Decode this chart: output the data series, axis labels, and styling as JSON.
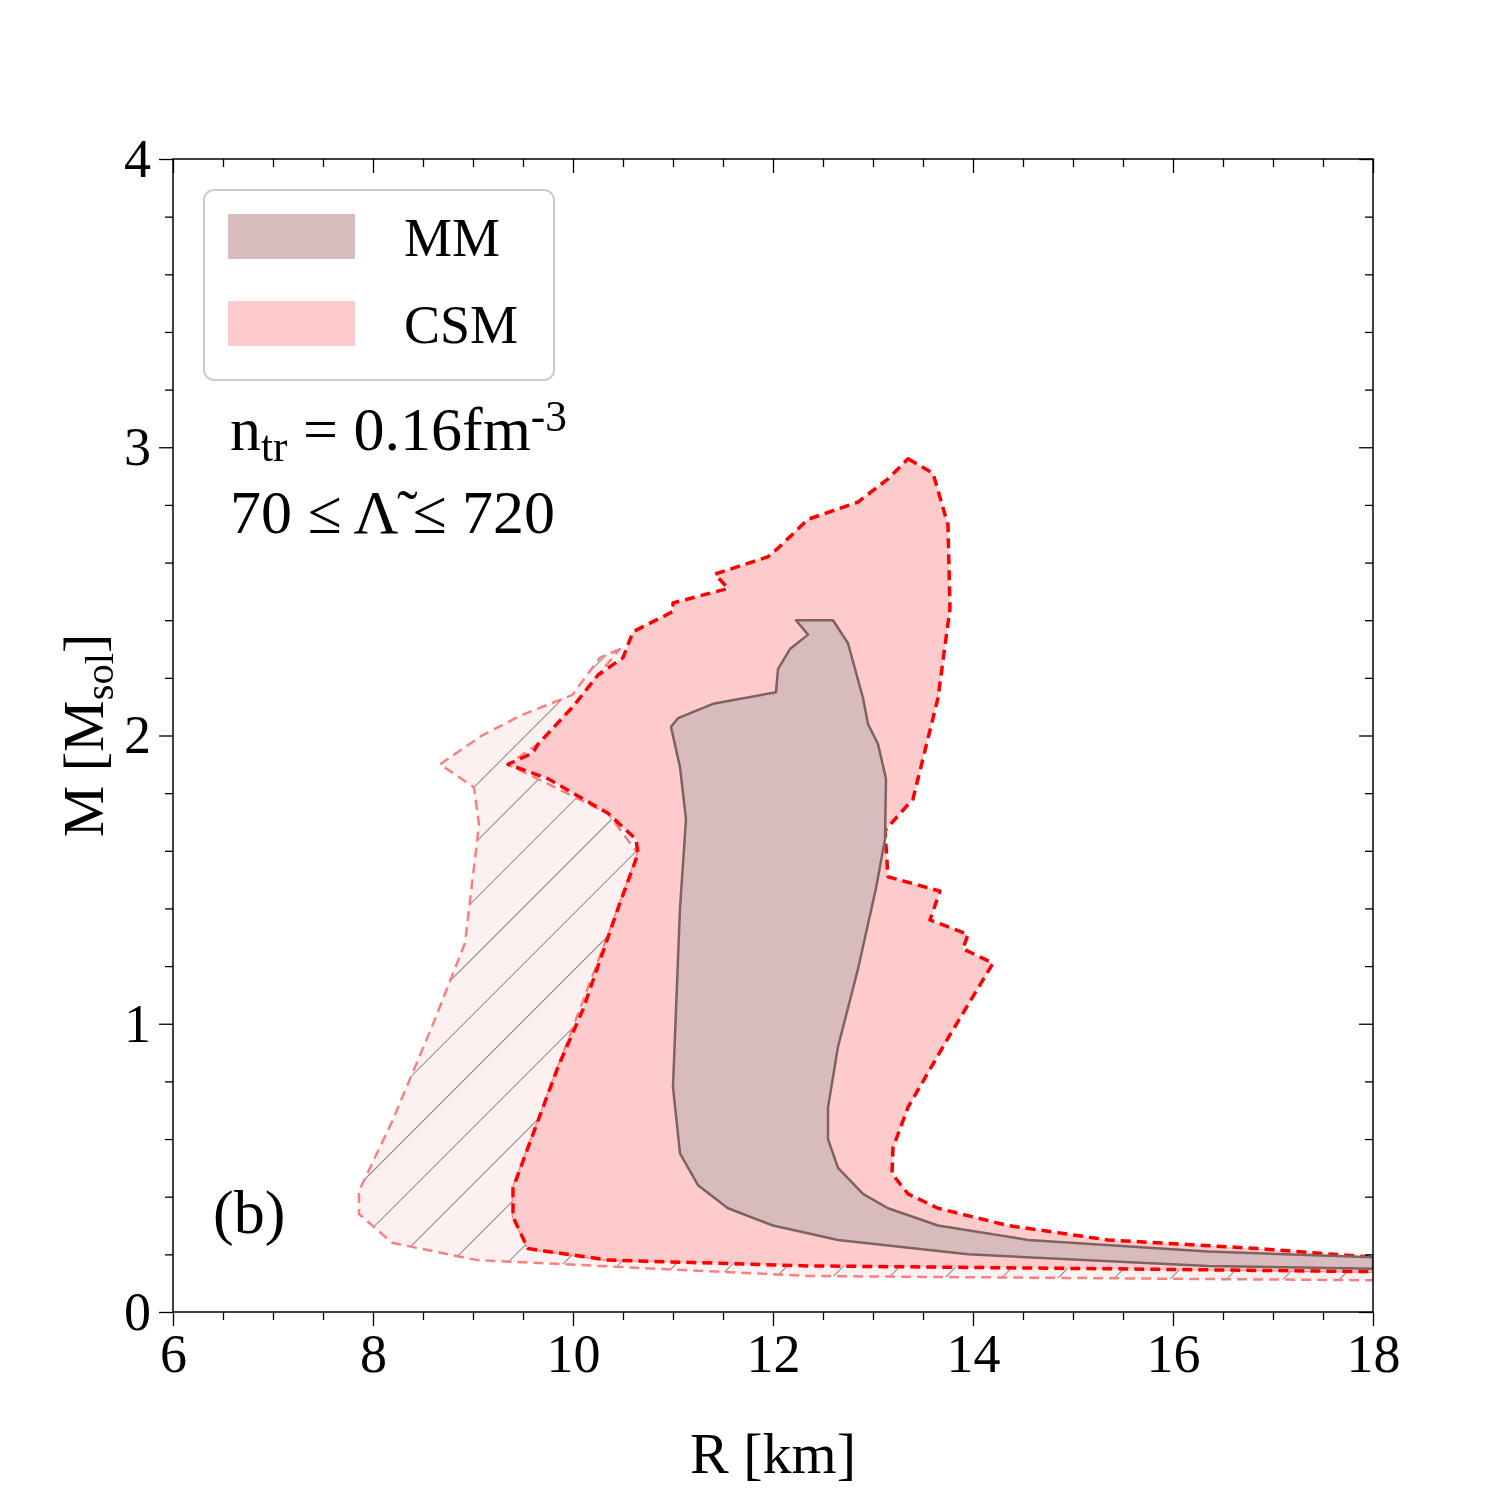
{
  "chart_data": {
    "type": "area",
    "xlabel": "R [km]",
    "ylabel": "M  [M$_{sol}$]",
    "xlim": [
      6,
      18
    ],
    "ylim": [
      0,
      4
    ],
    "xticks": [
      6,
      {
        "value": 6.5,
        "label": null
      },
      {
        "value": 7,
        "label": null
      },
      {
        "value": 7.5,
        "label": null
      },
      8,
      {
        "value": 8.5,
        "label": null
      },
      {
        "value": 9,
        "label": null
      },
      {
        "value": 9.5,
        "label": null
      },
      10,
      {
        "value": 10.5,
        "label": null
      },
      {
        "value": 11,
        "label": null
      },
      {
        "value": 11.5,
        "label": null
      },
      12,
      {
        "value": 12.5,
        "label": null
      },
      {
        "value": 13,
        "label": null
      },
      {
        "value": 13.5,
        "label": null
      },
      14,
      {
        "value": 14.5,
        "label": null
      },
      {
        "value": 15,
        "label": null
      },
      {
        "value": 15.5,
        "label": null
      },
      16,
      {
        "value": 16.5,
        "label": null
      },
      {
        "value": 17,
        "label": null
      },
      {
        "value": 17.5,
        "label": null
      },
      18
    ],
    "yticks": [
      0,
      {
        "value": 0.2,
        "label": null
      },
      {
        "value": 0.4,
        "label": null
      },
      {
        "value": 0.6,
        "label": null
      },
      {
        "value": 0.8,
        "label": null
      },
      1,
      {
        "value": 1.2,
        "label": null
      },
      {
        "value": 1.4,
        "label": null
      },
      {
        "value": 1.6,
        "label": null
      },
      {
        "value": 1.8,
        "label": null
      },
      2,
      {
        "value": 2.2,
        "label": null
      },
      {
        "value": 2.4,
        "label": null
      },
      {
        "value": 2.6,
        "label": null
      },
      {
        "value": 2.8,
        "label": null
      },
      3,
      {
        "value": 3.2,
        "label": null
      },
      {
        "value": 3.4,
        "label": null
      },
      {
        "value": 3.6,
        "label": null
      },
      {
        "value": 3.8,
        "label": null
      },
      4
    ],
    "grid": false,
    "legend": "top left",
    "annotations": [
      "n$_{tr}$ = 0.16fm$^{-3}$",
      "70 ≤ Λ̃ ≤ 720",
      "(b)"
    ],
    "series": [
      {
        "color": "#fdf0f0",
        "line_style": "dashed",
        "x": [
          10.47,
          10.27,
          9.99,
          9.48,
          9.09,
          8.67,
          9.01,
          9.06,
          8.92,
          8.59,
          8.19,
          7.86,
          7.86,
          8.19,
          9.04,
          12.35,
          18,
          18,
          10.35,
          9.55,
          9.4,
          9.4,
          9.85,
          10.45,
          10.65,
          10.35,
          9.35,
          9.65,
          10.0,
          10.25
        ],
        "values": [
          2.3,
          2.27,
          2.14,
          2.07,
          2.0,
          1.9,
          1.82,
          1.69,
          1.28,
          0.99,
          0.66,
          0.42,
          0.34,
          0.24,
          0.18,
          0.125,
          0.11,
          0.14,
          0.18,
          0.22,
          0.33,
          0.43,
          0.85,
          1.4,
          1.59,
          1.73,
          1.9,
          1.97,
          2.1,
          2.21
        ]
      },
      {
        "name": "CSM",
        "color": "#fdcbcb",
        "line_style": "dashed",
        "x": [
          13.35,
          13.6,
          13.75,
          13.77,
          13.65,
          13.4,
          13.12,
          13.15,
          13.67,
          13.57,
          13.95,
          13.9,
          14.2,
          13.75,
          13.35,
          13.2,
          13.19,
          13.35,
          13.65,
          14.35,
          15.35,
          16.85,
          18,
          18,
          15.35,
          12.35,
          10.35,
          9.55,
          9.4,
          9.4,
          9.55,
          9.85,
          10.1,
          10.45,
          10.65,
          10.63,
          10.35,
          9.75,
          9.35,
          9.6,
          9.65,
          10.0,
          10.25,
          10.5,
          10.6,
          11.0,
          11.0,
          11.55,
          11.42,
          11.95,
          12.05,
          12.35,
          12.85,
          13.15
        ],
        "values": [
          2.96,
          2.91,
          2.73,
          2.44,
          2.13,
          1.78,
          1.67,
          1.51,
          1.46,
          1.36,
          1.31,
          1.26,
          1.21,
          0.95,
          0.71,
          0.57,
          0.48,
          0.41,
          0.36,
          0.3,
          0.25,
          0.22,
          0.19,
          0.14,
          0.15,
          0.16,
          0.18,
          0.22,
          0.33,
          0.43,
          0.57,
          0.85,
          1.05,
          1.4,
          1.59,
          1.64,
          1.73,
          1.85,
          1.9,
          1.94,
          1.97,
          2.1,
          2.21,
          2.27,
          2.36,
          2.43,
          2.46,
          2.51,
          2.56,
          2.62,
          2.65,
          2.75,
          2.81,
          2.89
        ]
      },
      {
        "name": "MM",
        "color": "#d8bcbd",
        "line_style": "solid",
        "x": [
          12.23,
          12.6,
          12.75,
          12.9,
          12.95,
          13.05,
          13.13,
          13.12,
          13.03,
          12.85,
          12.65,
          12.55,
          12.55,
          12.65,
          12.9,
          13.15,
          13.65,
          14.55,
          16.35,
          18,
          18,
          16.35,
          13.95,
          12.65,
          12.0,
          11.55,
          11.25,
          11.07,
          11.0,
          11.03,
          11.07,
          11.13,
          11.07,
          10.98,
          11.05,
          11.4,
          12.03,
          12.05,
          12.17,
          12.35
        ],
        "values": [
          2.4,
          2.4,
          2.32,
          2.13,
          2.04,
          1.97,
          1.85,
          1.64,
          1.47,
          1.19,
          0.92,
          0.71,
          0.6,
          0.5,
          0.41,
          0.36,
          0.3,
          0.25,
          0.21,
          0.19,
          0.15,
          0.16,
          0.2,
          0.25,
          0.3,
          0.36,
          0.44,
          0.55,
          0.78,
          1.05,
          1.4,
          1.71,
          1.89,
          2.03,
          2.06,
          2.11,
          2.15,
          2.23,
          2.3,
          2.35
        ]
      }
    ]
  }
}
